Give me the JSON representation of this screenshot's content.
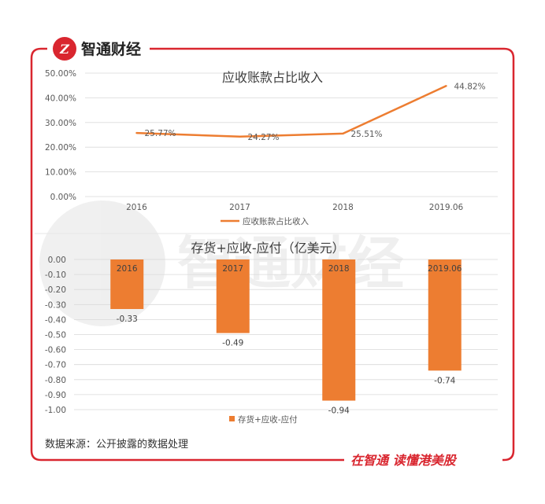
{
  "header": {
    "logo_mark": "Z",
    "brand": "智通财经"
  },
  "footer": {
    "source": "数据来源：公开披露的数据处理",
    "slogan": "在智通 读懂港美股"
  },
  "watermark": {
    "text": "智通财经"
  },
  "colors": {
    "accent_red": "#d9262f",
    "series_orange": "#ed7d31",
    "grid": "#d9d9d9",
    "text": "#595959"
  },
  "chart_data": [
    {
      "type": "line",
      "title": "应收账款占比收入",
      "categories": [
        "2016",
        "2017",
        "2018",
        "2019.06"
      ],
      "series": [
        {
          "name": "应收账款占比收入",
          "values": [
            25.77,
            24.27,
            25.51,
            44.82
          ],
          "labels": [
            "25.77%",
            "24.27%",
            "25.51%",
            "44.82%"
          ]
        }
      ],
      "y_ticks": [
        "50.00%",
        "40.00%",
        "30.00%",
        "20.00%",
        "10.00%",
        "0.00%"
      ],
      "ylim": [
        0,
        50
      ],
      "grid": true,
      "legend": "bottom"
    },
    {
      "type": "bar",
      "title": "存货+应收-应付（亿美元）",
      "categories": [
        "2016",
        "2017",
        "2018",
        "2019.06"
      ],
      "series": [
        {
          "name": "存货+应收-应付",
          "values": [
            -0.33,
            -0.49,
            -0.94,
            -0.74
          ],
          "labels": [
            "-0.33",
            "-0.49",
            "-0.94",
            "-0.74"
          ]
        }
      ],
      "y_ticks": [
        "0.00",
        "-0.10",
        "-0.20",
        "-0.30",
        "-0.40",
        "-0.50",
        "-0.60",
        "-0.70",
        "-0.80",
        "-0.90",
        "-1.00"
      ],
      "ylim": [
        -1.0,
        0
      ],
      "grid": true,
      "legend": "bottom"
    }
  ]
}
